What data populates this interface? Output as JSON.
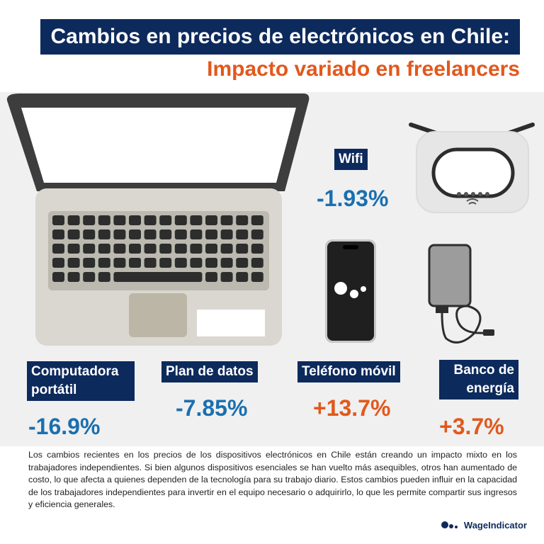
{
  "header": {
    "title": "Cambios en precios de electrónicos en Chile:",
    "subtitle": "Impacto variado en freelancers"
  },
  "items": [
    {
      "label": "Wifi",
      "value": "-1.93%",
      "icon": "router-icon"
    },
    {
      "label": "Computadora portátil",
      "value": "-16.9%",
      "icon": "laptop-icon"
    },
    {
      "label": "Plan de datos",
      "value": "-7.85%",
      "icon": "sim-icon"
    },
    {
      "label": "Teléfono móvil",
      "value": "+13.7%",
      "icon": "smartphone-icon"
    },
    {
      "label": "Banco de energía",
      "value": "+3.7%",
      "icon": "power-bank-icon"
    }
  ],
  "description": "Los cambios recientes en los precios de los dispositivos electrónicos en Chile están creando un impacto mixto en los trabajadores independientes. Si bien algunos dispositivos esenciales se han vuelto más asequibles, otros han aumentado de costo, lo que afecta a quienes dependen de la tecnología para su trabajo diario. Estos cambios pueden influir en la capacidad de los trabajadores independientes para invertir en el equipo necesario o adquirirlo, lo que les permite compartir sus ingresos y eficiencia generales.",
  "brand": {
    "name": "WageIndicator"
  },
  "colors": {
    "navy": "#0d2a5c",
    "orange": "#e2581c",
    "blue": "#1a6fb0"
  }
}
